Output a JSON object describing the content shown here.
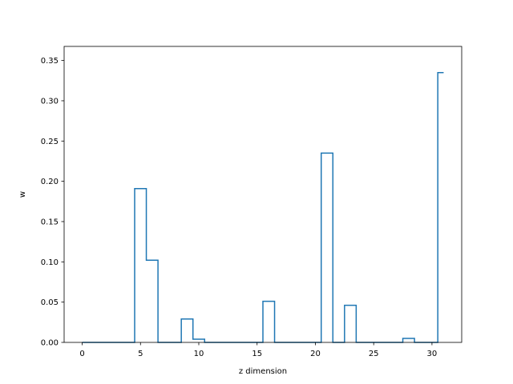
{
  "chart_data": {
    "type": "step",
    "title": "",
    "xlabel": "z dimension",
    "ylabel": "w",
    "xlim": [
      -1.55,
      32.55
    ],
    "ylim": [
      0,
      0.3675
    ],
    "x_ticks": [
      0,
      5,
      10,
      15,
      20,
      25,
      30
    ],
    "y_ticks": [
      0.0,
      0.05,
      0.1,
      0.15,
      0.2,
      0.25,
      0.3,
      0.35
    ],
    "x_tick_labels": [
      "0",
      "5",
      "10",
      "15",
      "20",
      "25",
      "30"
    ],
    "y_tick_labels": [
      "0.00",
      "0.05",
      "0.10",
      "0.15",
      "0.20",
      "0.25",
      "0.30",
      "0.35"
    ],
    "step_where": "mid",
    "x": [
      0,
      1,
      2,
      3,
      4,
      5,
      6,
      7,
      8,
      9,
      10,
      11,
      12,
      13,
      14,
      15,
      16,
      17,
      18,
      19,
      20,
      21,
      22,
      23,
      24,
      25,
      26,
      27,
      28,
      29,
      30,
      31
    ],
    "values": [
      0,
      0,
      0,
      0,
      0,
      0.191,
      0.102,
      0,
      0,
      0.029,
      0.004,
      0,
      0,
      0,
      0,
      0,
      0.051,
      0,
      0,
      0,
      0,
      0.235,
      0,
      0.046,
      0,
      0,
      0,
      0,
      0.005,
      0,
      0,
      0.335
    ],
    "line_color": "#1f77b4",
    "grid": false
  }
}
